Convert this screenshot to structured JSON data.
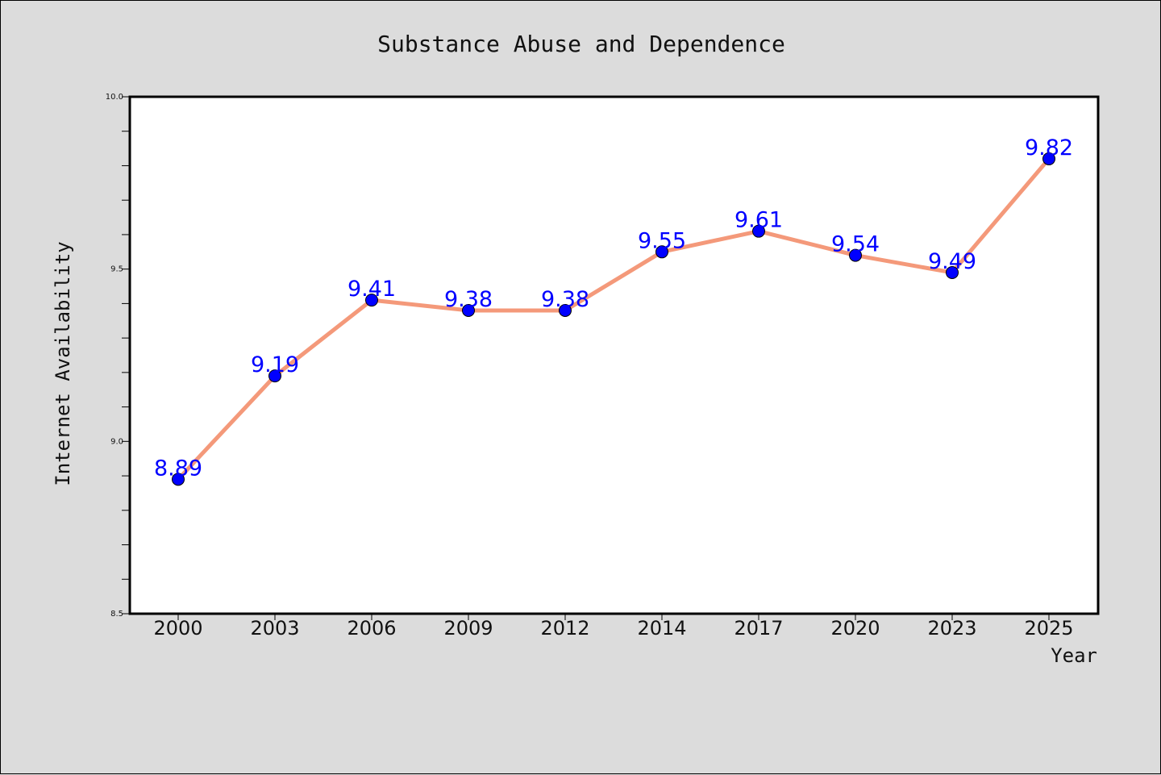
{
  "chart_data": {
    "type": "line",
    "title": "Substance Abuse and Dependence",
    "xlabel": "Year",
    "ylabel": "Internet Availability",
    "categories": [
      "2000",
      "2003",
      "2006",
      "2009",
      "2012",
      "2014",
      "2017",
      "2020",
      "2023",
      "2025"
    ],
    "series": [
      {
        "values": [
          8.89,
          9.19,
          9.41,
          9.38,
          9.38,
          9.55,
          9.61,
          9.54,
          9.49,
          9.82
        ],
        "line_color": "#f4997a",
        "marker_color": "#0000ff"
      }
    ],
    "data_labels": [
      "8.89",
      "9.19",
      "9.41",
      "9.38",
      "9.38",
      "9.55",
      "9.61",
      "9.54",
      "9.49",
      "9.82"
    ],
    "ylim": [
      8.5,
      10.0
    ],
    "yticks": [
      "8.5",
      "9.0",
      "9.5",
      "10.0"
    ],
    "yticks_minor_step": 0.1,
    "grid": false,
    "legend": "none",
    "colors": {
      "background": "#dcdcdc",
      "plot_area": "#ffffff",
      "label_color": "#0000ff"
    }
  }
}
